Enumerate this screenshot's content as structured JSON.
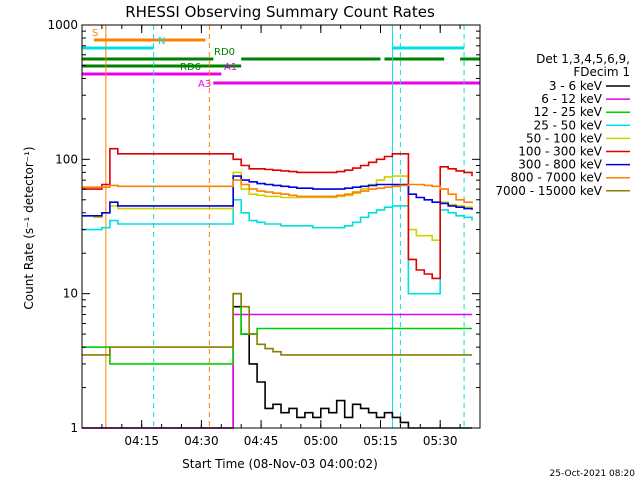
{
  "chart_data": {
    "type": "line",
    "title": "RHESSI Observing Summary Count Rates",
    "xlabel": "Start Time (08-Nov-03 04:00:02)",
    "ylabel": "Count Rate (s⁻¹ detector⁻¹)",
    "yscale": "log",
    "ylim": [
      1,
      1000
    ],
    "xlim_minutes": [
      0,
      100
    ],
    "x_ticks": [
      {
        "minute": 15,
        "label": "04:15"
      },
      {
        "minute": 30,
        "label": "04:30"
      },
      {
        "minute": 45,
        "label": "04:45"
      },
      {
        "minute": 60,
        "label": "05:00"
      },
      {
        "minute": 75,
        "label": "05:15"
      },
      {
        "minute": 90,
        "label": "05:30"
      }
    ],
    "y_ticks": [
      {
        "value": 1,
        "label": "1"
      },
      {
        "value": 10,
        "label": "10"
      },
      {
        "value": 100,
        "label": "100"
      },
      {
        "value": 1000,
        "label": "1000"
      }
    ],
    "legend_header": [
      "Det 1,3,4,5,6,9,",
      "FDecim 1"
    ],
    "legend_placement": "right",
    "series": [
      {
        "name": "3 - 6 keV",
        "color": "#000000",
        "x": [
          0,
          2,
          3,
          5,
          7,
          9,
          10,
          12,
          14,
          16,
          18,
          19,
          20,
          22,
          24,
          26,
          28,
          30,
          31,
          33,
          35,
          36,
          38,
          40,
          42,
          44,
          46,
          48,
          50,
          52,
          54,
          56,
          58,
          60,
          62,
          64,
          66,
          68,
          70,
          72,
          74,
          76,
          78,
          80,
          82,
          84,
          86,
          88,
          90,
          92,
          94,
          96,
          98
        ],
        "y": [
          1,
          1,
          1,
          1,
          1,
          1,
          1,
          1,
          1,
          1,
          1,
          1,
          1,
          1,
          1,
          1,
          1,
          1,
          1,
          1,
          1,
          1,
          8,
          5,
          3,
          2.2,
          1.4,
          1.5,
          1.3,
          1.4,
          1.2,
          1.3,
          1.2,
          1.4,
          1.3,
          1.6,
          1.2,
          1.5,
          1.4,
          1.3,
          1.2,
          1.3,
          1.2,
          1.1,
          1,
          1,
          1,
          1,
          1,
          1,
          1,
          1,
          1
        ]
      },
      {
        "name": "6 - 12 keV",
        "color": "#e800e8",
        "x": [
          0,
          2,
          3,
          5,
          7,
          9,
          10,
          12,
          14,
          16,
          18,
          19,
          20,
          22,
          24,
          26,
          28,
          30,
          31,
          33,
          35,
          36,
          38,
          40,
          42,
          44,
          46,
          48,
          50,
          52,
          54,
          56,
          58,
          60,
          62,
          64,
          66,
          68,
          70,
          72,
          74,
          76,
          78,
          80,
          82,
          84,
          86,
          88,
          90,
          92,
          94,
          96,
          98
        ],
        "y": [
          1,
          1,
          1,
          1,
          1,
          1,
          1,
          1,
          1,
          1,
          1,
          1,
          1,
          1,
          1,
          1,
          1,
          1,
          1,
          1,
          1,
          1,
          7,
          7,
          7,
          7,
          7,
          7,
          7,
          7,
          7,
          7,
          7,
          7,
          7,
          7,
          7,
          7,
          7,
          7,
          7,
          7,
          7,
          7,
          7,
          7,
          7,
          7,
          7,
          7,
          7,
          7,
          7
        ]
      },
      {
        "name": "12 - 25 keV",
        "color": "#00d000",
        "x": [
          0,
          2,
          3,
          5,
          7,
          9,
          10,
          12,
          14,
          16,
          18,
          19,
          20,
          22,
          24,
          26,
          28,
          30,
          31,
          33,
          35,
          36,
          38,
          40,
          42,
          44,
          46,
          48,
          50,
          52,
          54,
          56,
          58,
          60,
          62,
          64,
          66,
          68,
          70,
          72,
          74,
          76,
          78,
          80,
          82,
          84,
          86,
          88,
          90,
          92,
          94,
          96,
          98
        ],
        "y": [
          4,
          4,
          4,
          4,
          3,
          3,
          3,
          3,
          3,
          3,
          3,
          3,
          3,
          3,
          3,
          3,
          3,
          3,
          3,
          3,
          3,
          3,
          10,
          5,
          5,
          5.5,
          5.5,
          5.5,
          5.5,
          5.5,
          5.5,
          5.5,
          5.5,
          5.5,
          5.5,
          5.5,
          5.5,
          5.5,
          5.5,
          5.5,
          5.5,
          5.5,
          5.5,
          5.5,
          5.5,
          5.5,
          5.5,
          5.5,
          5.5,
          5.5,
          5.5,
          5.5,
          5.5
        ]
      },
      {
        "name": "25 - 50 keV",
        "color": "#00e0e0",
        "x": [
          0,
          2,
          3,
          5,
          7,
          9,
          10,
          12,
          14,
          16,
          18,
          19,
          20,
          22,
          24,
          26,
          28,
          30,
          31,
          33,
          35,
          36,
          38,
          40,
          42,
          44,
          46,
          48,
          50,
          52,
          54,
          56,
          58,
          60,
          62,
          64,
          66,
          68,
          70,
          72,
          74,
          76,
          78,
          80,
          82,
          84,
          86,
          88,
          90,
          92,
          94,
          96,
          98
        ],
        "y": [
          30,
          30,
          30,
          31,
          35,
          33,
          33,
          33,
          33,
          33,
          33,
          33,
          33,
          33,
          33,
          33,
          33,
          33,
          33,
          33,
          33,
          33,
          50,
          40,
          35,
          34,
          33,
          33,
          32,
          32,
          32,
          32,
          31,
          31,
          31,
          31,
          32,
          34,
          37,
          40,
          42,
          44,
          45,
          45,
          10,
          10,
          10,
          10,
          42,
          40,
          38,
          37,
          35
        ]
      },
      {
        "name": "50 - 100 keV",
        "color": "#d0d000",
        "x": [
          0,
          2,
          3,
          5,
          7,
          9,
          10,
          12,
          14,
          16,
          18,
          19,
          20,
          22,
          24,
          26,
          28,
          30,
          31,
          33,
          35,
          36,
          38,
          40,
          42,
          44,
          46,
          48,
          50,
          52,
          54,
          56,
          58,
          60,
          62,
          64,
          66,
          68,
          70,
          72,
          74,
          76,
          78,
          80,
          82,
          84,
          86,
          88,
          90,
          92,
          94,
          96,
          98
        ],
        "y": [
          38,
          38,
          37,
          40,
          45,
          43,
          43,
          43,
          43,
          43,
          43,
          43,
          43,
          43,
          43,
          43,
          43,
          43,
          43,
          43,
          43,
          43,
          80,
          60,
          55,
          54,
          53,
          53,
          52,
          52,
          52,
          52,
          52,
          52,
          52,
          53,
          54,
          56,
          60,
          65,
          70,
          74,
          75,
          75,
          30,
          27,
          27,
          25,
          48,
          46,
          45,
          44,
          43
        ]
      },
      {
        "name": "100 - 300 keV",
        "color": "#e00000",
        "x": [
          0,
          2,
          3,
          5,
          7,
          9,
          10,
          12,
          14,
          16,
          18,
          19,
          20,
          22,
          24,
          26,
          28,
          30,
          31,
          33,
          35,
          36,
          38,
          40,
          42,
          44,
          46,
          48,
          50,
          52,
          54,
          56,
          58,
          60,
          62,
          64,
          66,
          68,
          70,
          72,
          74,
          76,
          78,
          80,
          82,
          84,
          86,
          88,
          90,
          92,
          94,
          96,
          98
        ],
        "y": [
          60,
          60,
          60,
          65,
          120,
          110,
          110,
          110,
          110,
          110,
          110,
          110,
          110,
          110,
          110,
          110,
          110,
          110,
          110,
          110,
          110,
          110,
          100,
          90,
          85,
          85,
          84,
          83,
          82,
          81,
          80,
          80,
          80,
          80,
          80,
          81,
          83,
          86,
          90,
          95,
          100,
          105,
          110,
          110,
          18,
          15,
          14,
          13,
          88,
          85,
          82,
          80,
          75
        ]
      },
      {
        "name": "300 - 800 keV",
        "color": "#0000e0",
        "x": [
          0,
          2,
          3,
          5,
          7,
          9,
          10,
          12,
          14,
          16,
          18,
          19,
          20,
          22,
          24,
          26,
          28,
          30,
          31,
          33,
          35,
          36,
          38,
          40,
          42,
          44,
          46,
          48,
          50,
          52,
          54,
          56,
          58,
          60,
          62,
          64,
          66,
          68,
          70,
          72,
          74,
          76,
          78,
          80,
          82,
          84,
          86,
          88,
          90,
          92,
          94,
          96,
          98
        ],
        "y": [
          38,
          38,
          38,
          40,
          48,
          45,
          45,
          45,
          45,
          45,
          45,
          45,
          45,
          45,
          45,
          45,
          45,
          45,
          45,
          45,
          45,
          45,
          75,
          70,
          68,
          66,
          65,
          64,
          63,
          62,
          61,
          61,
          60,
          60,
          60,
          60,
          61,
          62,
          63,
          64,
          65,
          65,
          65,
          65,
          55,
          52,
          50,
          48,
          47,
          45,
          44,
          43,
          42
        ]
      },
      {
        "name": "800 - 7000 keV",
        "color": "#ff8000",
        "x": [
          0,
          2,
          3,
          5,
          7,
          9,
          10,
          12,
          14,
          16,
          18,
          19,
          20,
          22,
          24,
          26,
          28,
          30,
          31,
          33,
          35,
          36,
          38,
          40,
          42,
          44,
          46,
          48,
          50,
          52,
          54,
          56,
          58,
          60,
          62,
          64,
          66,
          68,
          70,
          72,
          74,
          76,
          78,
          80,
          82,
          84,
          86,
          88,
          90,
          92,
          94,
          96,
          98
        ],
        "y": [
          62,
          62,
          62,
          62,
          64,
          63,
          63,
          63,
          63,
          63,
          63,
          63,
          63,
          63,
          63,
          63,
          63,
          63,
          63,
          63,
          63,
          63,
          70,
          65,
          60,
          58,
          57,
          56,
          55,
          54,
          53,
          53,
          53,
          53,
          53,
          54,
          55,
          57,
          58,
          60,
          61,
          62,
          63,
          64,
          65,
          65,
          64,
          63,
          60,
          55,
          50,
          48,
          47
        ]
      },
      {
        "name": "7000 - 15000 keV",
        "color": "#8b7d00",
        "x": [
          0,
          2,
          3,
          5,
          7,
          9,
          10,
          12,
          14,
          16,
          18,
          19,
          20,
          22,
          24,
          26,
          28,
          30,
          31,
          33,
          35,
          36,
          38,
          40,
          42,
          44,
          46,
          48,
          50,
          52,
          54,
          56,
          58,
          60,
          62,
          64,
          66,
          68,
          70,
          72,
          74,
          76,
          78,
          80,
          82,
          84,
          86,
          88,
          90,
          92,
          94,
          96,
          98
        ],
        "y": [
          3.5,
          3.5,
          3.5,
          3.5,
          4,
          4,
          4,
          4,
          4,
          4,
          4,
          4,
          4,
          4,
          4,
          4,
          4,
          4,
          4,
          4,
          4,
          4,
          10,
          8,
          5,
          4.2,
          3.9,
          3.7,
          3.5,
          3.5,
          3.5,
          3.5,
          3.5,
          3.5,
          3.5,
          3.5,
          3.5,
          3.5,
          3.5,
          3.5,
          3.5,
          3.5,
          3.5,
          3.5,
          3.5,
          3.5,
          3.5,
          3.5,
          3.5,
          3.5,
          3.5,
          3.5,
          3.5
        ]
      }
    ],
    "state_bars": [
      {
        "label": "S",
        "color": "#ff8000",
        "spans": [
          [
            3,
            31
          ]
        ]
      },
      {
        "label": "N",
        "color": "#00e0e0",
        "spans": [
          [
            0,
            18
          ],
          [
            78,
            96
          ]
        ]
      },
      {
        "label": "RD0",
        "color": "#008000",
        "spans": [
          [
            0,
            33
          ],
          [
            40,
            75
          ],
          [
            76,
            91
          ],
          [
            95,
            100
          ]
        ]
      },
      {
        "label": "RD6",
        "color": "#008000",
        "spans": [
          [
            0,
            40
          ]
        ]
      },
      {
        "label": "A1",
        "color": "#e800e8",
        "spans": [
          [
            0,
            35
          ]
        ]
      },
      {
        "label": "A3",
        "color": "#e800e8",
        "spans": [
          [
            33,
            100
          ]
        ]
      }
    ],
    "vlines": [
      {
        "minute": 6,
        "color": "#ff8000",
        "style": "solid"
      },
      {
        "minute": 18,
        "color": "#00e0e0",
        "style": "dashed"
      },
      {
        "minute": 32,
        "color": "#ff8000",
        "style": "dashed"
      },
      {
        "minute": 78,
        "color": "#00e0e0",
        "style": "solid"
      },
      {
        "minute": 80,
        "color": "#00e0e0",
        "style": "dashed"
      },
      {
        "minute": 96,
        "color": "#00e0e0",
        "style": "dashed"
      }
    ],
    "timestamp": "25-Oct-2021 08:20"
  }
}
